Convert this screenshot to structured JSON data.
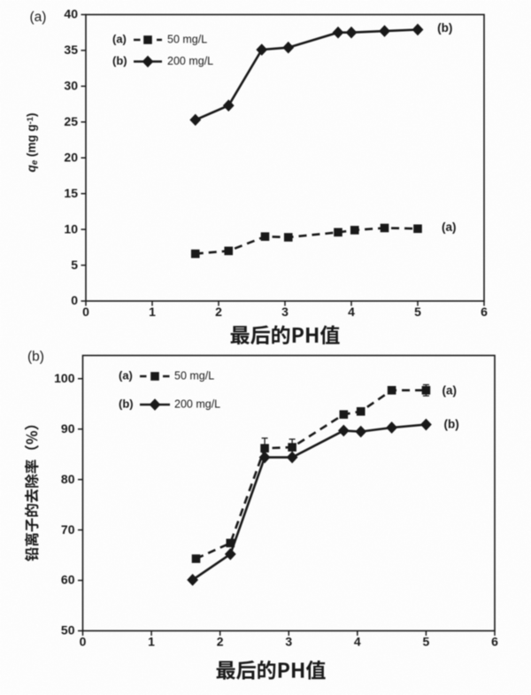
{
  "page": {
    "background_color": "#fdfdfd",
    "ink_color": "#1b1b1b",
    "figure_type": "two stacked line charts"
  },
  "chart_data": [
    {
      "type": "line",
      "panel_label": "(a)",
      "xlabel": "最后的PH值",
      "ylabel": "qₑ (mg g⁻¹)",
      "xlim": [
        0,
        6
      ],
      "ylim": [
        0,
        40
      ],
      "xticks": [
        0,
        1,
        2,
        3,
        4,
        5,
        6
      ],
      "yticks": [
        0,
        5,
        10,
        15,
        20,
        25,
        30,
        35,
        40
      ],
      "grid": false,
      "legend_position": "top-left",
      "series": [
        {
          "key": "(a)",
          "name": "50 mg/L",
          "marker": "square",
          "line_style": "dashed",
          "color": "#1b1b1b",
          "points": [
            [
              1.65,
              6.6
            ],
            [
              2.15,
              7.0
            ],
            [
              2.7,
              9.0
            ],
            [
              3.05,
              8.9
            ],
            [
              3.8,
              9.6
            ],
            [
              4.05,
              9.9
            ],
            [
              4.5,
              10.2
            ],
            [
              5.0,
              10.1
            ]
          ]
        },
        {
          "key": "(b)",
          "name": "200 mg/L",
          "marker": "diamond",
          "line_style": "solid",
          "color": "#1b1b1b",
          "points": [
            [
              1.65,
              25.3
            ],
            [
              2.15,
              27.3
            ],
            [
              2.65,
              35.1
            ],
            [
              3.05,
              35.4
            ],
            [
              3.8,
              37.5
            ],
            [
              4.0,
              37.5
            ],
            [
              4.5,
              37.7
            ],
            [
              5.0,
              37.9
            ]
          ]
        }
      ],
      "annotations": [
        {
          "text": "(b)",
          "x": 5.41,
          "y": 38.0
        },
        {
          "text": "(a)",
          "x": 5.47,
          "y": 10.2
        }
      ]
    },
    {
      "type": "line",
      "panel_label": "(b)",
      "xlabel": "最后的PH值",
      "ylabel": "铅离子的去除率（%）",
      "xlim": [
        0,
        6
      ],
      "ylim": [
        50,
        104.6
      ],
      "xticks": [
        0,
        1,
        2,
        3,
        4,
        5,
        6
      ],
      "yticks": [
        50,
        60,
        70,
        80,
        90,
        100
      ],
      "grid": false,
      "legend_position": "top-left",
      "series": [
        {
          "key": "(a)",
          "name": "50 mg/L",
          "marker": "square",
          "line_style": "dashed",
          "color": "#1b1b1b",
          "points": [
            [
              1.65,
              64.3
            ],
            [
              2.15,
              67.4
            ],
            [
              2.65,
              86.2,
              2.0
            ],
            [
              3.05,
              86.4,
              1.6
            ],
            [
              3.8,
              92.9
            ],
            [
              4.05,
              93.5
            ],
            [
              4.5,
              97.7
            ],
            [
              5.0,
              97.7,
              1.1
            ]
          ]
        },
        {
          "key": "(b)",
          "name": "200 mg/L",
          "marker": "diamond",
          "line_style": "solid",
          "color": "#1b1b1b",
          "points": [
            [
              1.6,
              60.1
            ],
            [
              2.15,
              65.2
            ],
            [
              2.65,
              84.4
            ],
            [
              3.05,
              84.4
            ],
            [
              3.8,
              89.7
            ],
            [
              4.05,
              89.5
            ],
            [
              4.5,
              90.3
            ],
            [
              5.0,
              90.9
            ]
          ]
        }
      ],
      "annotations": [
        {
          "text": "(a)",
          "x": 5.34,
          "y": 97.5
        },
        {
          "text": "(b)",
          "x": 5.37,
          "y": 90.8
        }
      ]
    }
  ]
}
